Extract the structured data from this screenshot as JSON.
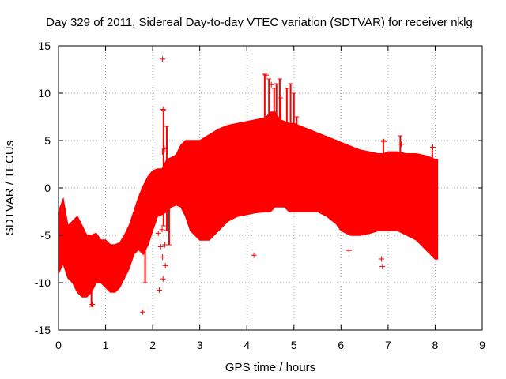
{
  "chart_data": {
    "type": "scatter",
    "title": "Day 329 of 2011, Sidereal Day-to-day VTEC variation (SDTVAR) for receiver nklg",
    "xlabel": "GPS time / hours",
    "ylabel": "SDTVAR / TECUs",
    "xlim": [
      0,
      9
    ],
    "ylim": [
      -15,
      15
    ],
    "x_ticks": [
      "0",
      "1",
      "2",
      "3",
      "4",
      "5",
      "6",
      "7",
      "8",
      "9"
    ],
    "y_ticks": [
      "-15",
      "-10",
      "-5",
      "0",
      "5",
      "10",
      "15"
    ],
    "grid": true,
    "series_color": "#ff0000",
    "envelope": {
      "x": [
        0.0,
        0.1,
        0.2,
        0.3,
        0.4,
        0.5,
        0.6,
        0.7,
        0.8,
        0.9,
        1.0,
        1.1,
        1.2,
        1.3,
        1.4,
        1.5,
        1.6,
        1.7,
        1.8,
        1.9,
        2.0,
        2.1,
        2.2,
        2.3,
        2.4,
        2.5,
        2.6,
        2.7,
        2.8,
        3.0,
        3.2,
        3.4,
        3.6,
        3.8,
        4.0,
        4.2,
        4.4,
        4.5,
        4.6,
        4.7,
        4.8,
        4.9,
        5.0,
        5.1,
        5.3,
        5.5,
        5.7,
        5.9,
        6.0,
        6.2,
        6.4,
        6.6,
        6.8,
        6.9,
        7.0,
        7.2,
        7.4,
        7.6,
        7.8,
        7.9,
        8.0,
        8.05
      ],
      "upper": [
        -2.5,
        -1.2,
        -4.0,
        -3.5,
        -3.0,
        -4.0,
        -5.0,
        -5.0,
        -4.8,
        -5.5,
        -5.5,
        -6.0,
        -6.0,
        -5.8,
        -5.0,
        -4.0,
        -2.5,
        -1.0,
        0.2,
        1.2,
        1.8,
        2.0,
        2.0,
        3.0,
        3.2,
        3.5,
        4.5,
        5.0,
        5.0,
        5.0,
        5.6,
        6.2,
        6.6,
        6.8,
        7.0,
        7.2,
        7.4,
        8.0,
        8.0,
        7.2,
        7.0,
        6.8,
        6.8,
        6.6,
        6.2,
        5.8,
        5.4,
        5.0,
        4.8,
        4.4,
        4.0,
        3.8,
        3.6,
        3.6,
        3.8,
        3.8,
        3.6,
        3.6,
        3.4,
        3.2,
        3.0,
        3.0
      ],
      "lower": [
        -9.0,
        -8.0,
        -9.5,
        -10.0,
        -11.0,
        -11.5,
        -11.5,
        -11.0,
        -10.0,
        -10.0,
        -10.5,
        -11.0,
        -11.0,
        -10.5,
        -9.5,
        -8.5,
        -7.0,
        -6.5,
        -7.0,
        -6.0,
        -4.5,
        -3.0,
        -2.8,
        -2.5,
        -2.0,
        -1.8,
        -2.0,
        -3.0,
        -4.5,
        -5.5,
        -5.5,
        -4.5,
        -3.5,
        -3.0,
        -2.8,
        -2.6,
        -2.5,
        -2.5,
        -2.0,
        -2.0,
        -2.0,
        -2.5,
        -2.5,
        -2.5,
        -2.5,
        -2.5,
        -3.0,
        -3.8,
        -4.5,
        -5.0,
        -5.0,
        -4.8,
        -4.5,
        -4.5,
        -4.5,
        -4.5,
        -5.0,
        -5.5,
        -6.5,
        -7.0,
        -7.5,
        -7.5
      ]
    },
    "spikes": [
      {
        "x": 1.84,
        "y0": -10.0,
        "y1": -2.0
      },
      {
        "x": 2.23,
        "y0": -4.0,
        "y1": 8.2
      },
      {
        "x": 2.3,
        "y0": -4.5,
        "y1": 6.5
      },
      {
        "x": 4.38,
        "y0": 7.0,
        "y1": 12.0
      },
      {
        "x": 4.47,
        "y0": 7.0,
        "y1": 11.5
      },
      {
        "x": 4.58,
        "y0": 5.0,
        "y1": 10.5
      },
      {
        "x": 4.63,
        "y0": -1.0,
        "y1": 11.0
      },
      {
        "x": 4.7,
        "y0": 4.0,
        "y1": 11.5
      },
      {
        "x": 4.72,
        "y0": 6.0,
        "y1": 9.5
      },
      {
        "x": 4.85,
        "y0": 6.5,
        "y1": 10.5
      },
      {
        "x": 4.93,
        "y0": 6.5,
        "y1": 11.0
      },
      {
        "x": 5.0,
        "y0": 6.0,
        "y1": 10.0
      },
      {
        "x": 5.06,
        "y0": 6.0,
        "y1": 7.5
      },
      {
        "x": 0.7,
        "y0": -12.5,
        "y1": -5.0
      },
      {
        "x": 6.9,
        "y0": 2.5,
        "y1": 5.0
      },
      {
        "x": 7.26,
        "y0": 2.5,
        "y1": 5.5
      },
      {
        "x": 7.94,
        "y0": 2.0,
        "y1": 4.3
      },
      {
        "x": 2.35,
        "y0": -6.0,
        "y1": -1.0
      }
    ],
    "outliers": [
      {
        "x": 1.79,
        "y": -13.1
      },
      {
        "x": 2.21,
        "y": 13.6
      },
      {
        "x": 2.22,
        "y": 8.3
      },
      {
        "x": 2.14,
        "y": -10.8
      },
      {
        "x": 2.22,
        "y": -9.6
      },
      {
        "x": 2.27,
        "y": -8.2
      },
      {
        "x": 2.21,
        "y": -7.3
      },
      {
        "x": 2.17,
        "y": -6.2
      },
      {
        "x": 2.26,
        "y": -6.0
      },
      {
        "x": 2.25,
        "y": 4.1
      },
      {
        "x": 2.21,
        "y": 3.8
      },
      {
        "x": 2.2,
        "y": -4.4
      },
      {
        "x": 2.12,
        "y": -4.8
      },
      {
        "x": 4.15,
        "y": -7.1
      },
      {
        "x": 6.86,
        "y": -7.5
      },
      {
        "x": 6.88,
        "y": -8.3
      },
      {
        "x": 6.17,
        "y": -6.6
      },
      {
        "x": 7.28,
        "y": 4.6
      },
      {
        "x": 7.95,
        "y": 4.3
      },
      {
        "x": 6.91,
        "y": 4.9
      },
      {
        "x": 4.41,
        "y": 11.9
      },
      {
        "x": 4.52,
        "y": 10.9
      },
      {
        "x": 0.72,
        "y": -12.3
      },
      {
        "x": 1.87,
        "y": -5.8
      },
      {
        "x": 2.4,
        "y": 1.9
      }
    ]
  }
}
